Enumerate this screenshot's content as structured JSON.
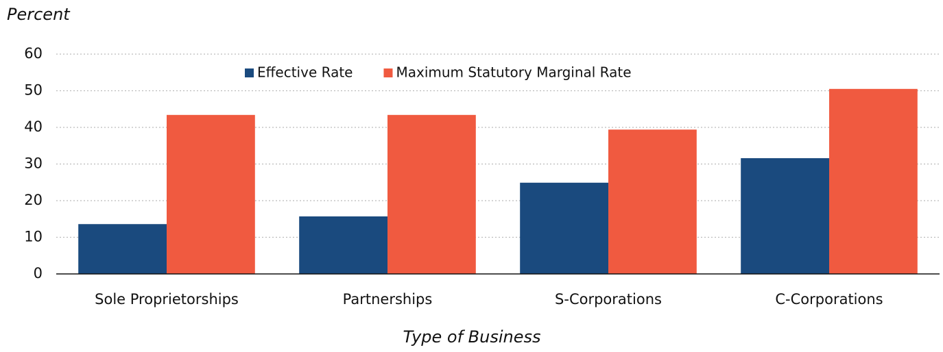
{
  "chart_data": {
    "type": "bar",
    "y_axis_label": "Percent",
    "x_axis_label": "Type of Business",
    "categories": [
      "Sole Proprietorships",
      "Partnerships",
      "S-Corporations",
      "C-Corporations"
    ],
    "series": [
      {
        "name": "Effective Rate",
        "color": "#1a4a7e",
        "values": [
          13.6,
          15.7,
          24.9,
          31.6
        ]
      },
      {
        "name": "Maximum Statutory Marginal Rate",
        "color": "#f05a40",
        "values": [
          43.4,
          43.4,
          39.4,
          50.5
        ]
      }
    ],
    "ylim": [
      0,
      60
    ],
    "yticks": [
      0,
      10,
      20,
      30,
      40,
      50,
      60
    ],
    "grid": true,
    "legend": "top"
  }
}
